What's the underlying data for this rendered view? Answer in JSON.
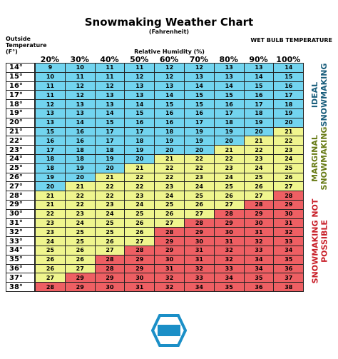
{
  "title": "Snowmaking Weather Chart",
  "subtitle": "(Fahrenheit)",
  "row_axis_label": [
    "Outside",
    "Temperature",
    "(F°)"
  ],
  "table_label": "WET BULB TEMPERATURE",
  "column_axis_label": "Relative Humidity (%)",
  "columns": [
    "20%",
    "30%",
    "40%",
    "50%",
    "60%",
    "70%",
    "80%",
    "90%",
    "100%"
  ],
  "zones": [
    {
      "label": "IDEAL SNOWMAKING",
      "color": "#1b5f7d"
    },
    {
      "label": "MARGINAL SNOWMAKING",
      "color": "#6a7d1a"
    },
    {
      "label": "SNOWMAKING NOT POSSIBLE",
      "color": "#c8202a"
    }
  ],
  "rows": [
    {
      "label": "14°",
      "cells": [
        9,
        10,
        11,
        11,
        12,
        12,
        13,
        13,
        14
      ]
    },
    {
      "label": "15°",
      "cells": [
        10,
        11,
        11,
        12,
        12,
        13,
        13,
        14,
        15
      ]
    },
    {
      "label": "16°",
      "cells": [
        11,
        12,
        12,
        13,
        13,
        14,
        14,
        15,
        16
      ]
    },
    {
      "label": "17°",
      "cells": [
        11,
        12,
        13,
        13,
        14,
        15,
        15,
        16,
        17
      ]
    },
    {
      "label": "18°",
      "cells": [
        12,
        13,
        13,
        14,
        15,
        15,
        16,
        17,
        18
      ]
    },
    {
      "label": "19°",
      "cells": [
        13,
        13,
        14,
        15,
        16,
        16,
        17,
        18,
        19
      ]
    },
    {
      "label": "20°",
      "cells": [
        13,
        14,
        15,
        16,
        16,
        17,
        18,
        19,
        20
      ]
    },
    {
      "label": "21°",
      "cells": [
        15,
        16,
        17,
        17,
        18,
        19,
        19,
        20,
        21
      ]
    },
    {
      "label": "22°",
      "cells": [
        16,
        16,
        17,
        18,
        19,
        19,
        20,
        21,
        22
      ]
    },
    {
      "label": "23°",
      "cells": [
        17,
        18,
        18,
        19,
        20,
        20,
        21,
        22,
        23
      ]
    },
    {
      "label": "24°",
      "cells": [
        18,
        18,
        19,
        20,
        21,
        22,
        22,
        23,
        24
      ]
    },
    {
      "label": "25°",
      "cells": [
        18,
        19,
        20,
        21,
        22,
        22,
        23,
        24,
        25
      ]
    },
    {
      "label": "26°",
      "cells": [
        19,
        20,
        21,
        22,
        22,
        23,
        24,
        25,
        26
      ]
    },
    {
      "label": "27°",
      "cells": [
        20,
        21,
        22,
        22,
        23,
        24,
        25,
        26,
        27
      ]
    },
    {
      "label": "28°",
      "cells": [
        21,
        22,
        22,
        23,
        24,
        25,
        26,
        27,
        28
      ]
    },
    {
      "label": "29°",
      "cells": [
        21,
        22,
        23,
        24,
        25,
        26,
        27,
        28,
        29
      ]
    },
    {
      "label": "30°",
      "cells": [
        22,
        23,
        24,
        25,
        26,
        27,
        28,
        29,
        30
      ]
    },
    {
      "label": "31°",
      "cells": [
        23,
        24,
        25,
        26,
        27,
        28,
        29,
        30,
        31
      ]
    },
    {
      "label": "32°",
      "cells": [
        23,
        25,
        25,
        26,
        28,
        29,
        30,
        31,
        32
      ]
    },
    {
      "label": "33°",
      "cells": [
        24,
        25,
        26,
        27,
        29,
        30,
        31,
        32,
        33
      ]
    },
    {
      "label": "34°",
      "cells": [
        25,
        26,
        27,
        28,
        29,
        31,
        32,
        33,
        34
      ]
    },
    {
      "label": "35°",
      "cells": [
        26,
        26,
        28,
        29,
        30,
        31,
        32,
        34,
        35
      ]
    },
    {
      "label": "36°",
      "cells": [
        26,
        27,
        28,
        29,
        31,
        32,
        33,
        34,
        36
      ]
    },
    {
      "label": "37°",
      "cells": [
        27,
        29,
        29,
        30,
        32,
        33,
        34,
        35,
        37
      ]
    },
    {
      "label": "38°",
      "cells": [
        28,
        29,
        30,
        31,
        32,
        34,
        35,
        36,
        38
      ]
    }
  ]
}
